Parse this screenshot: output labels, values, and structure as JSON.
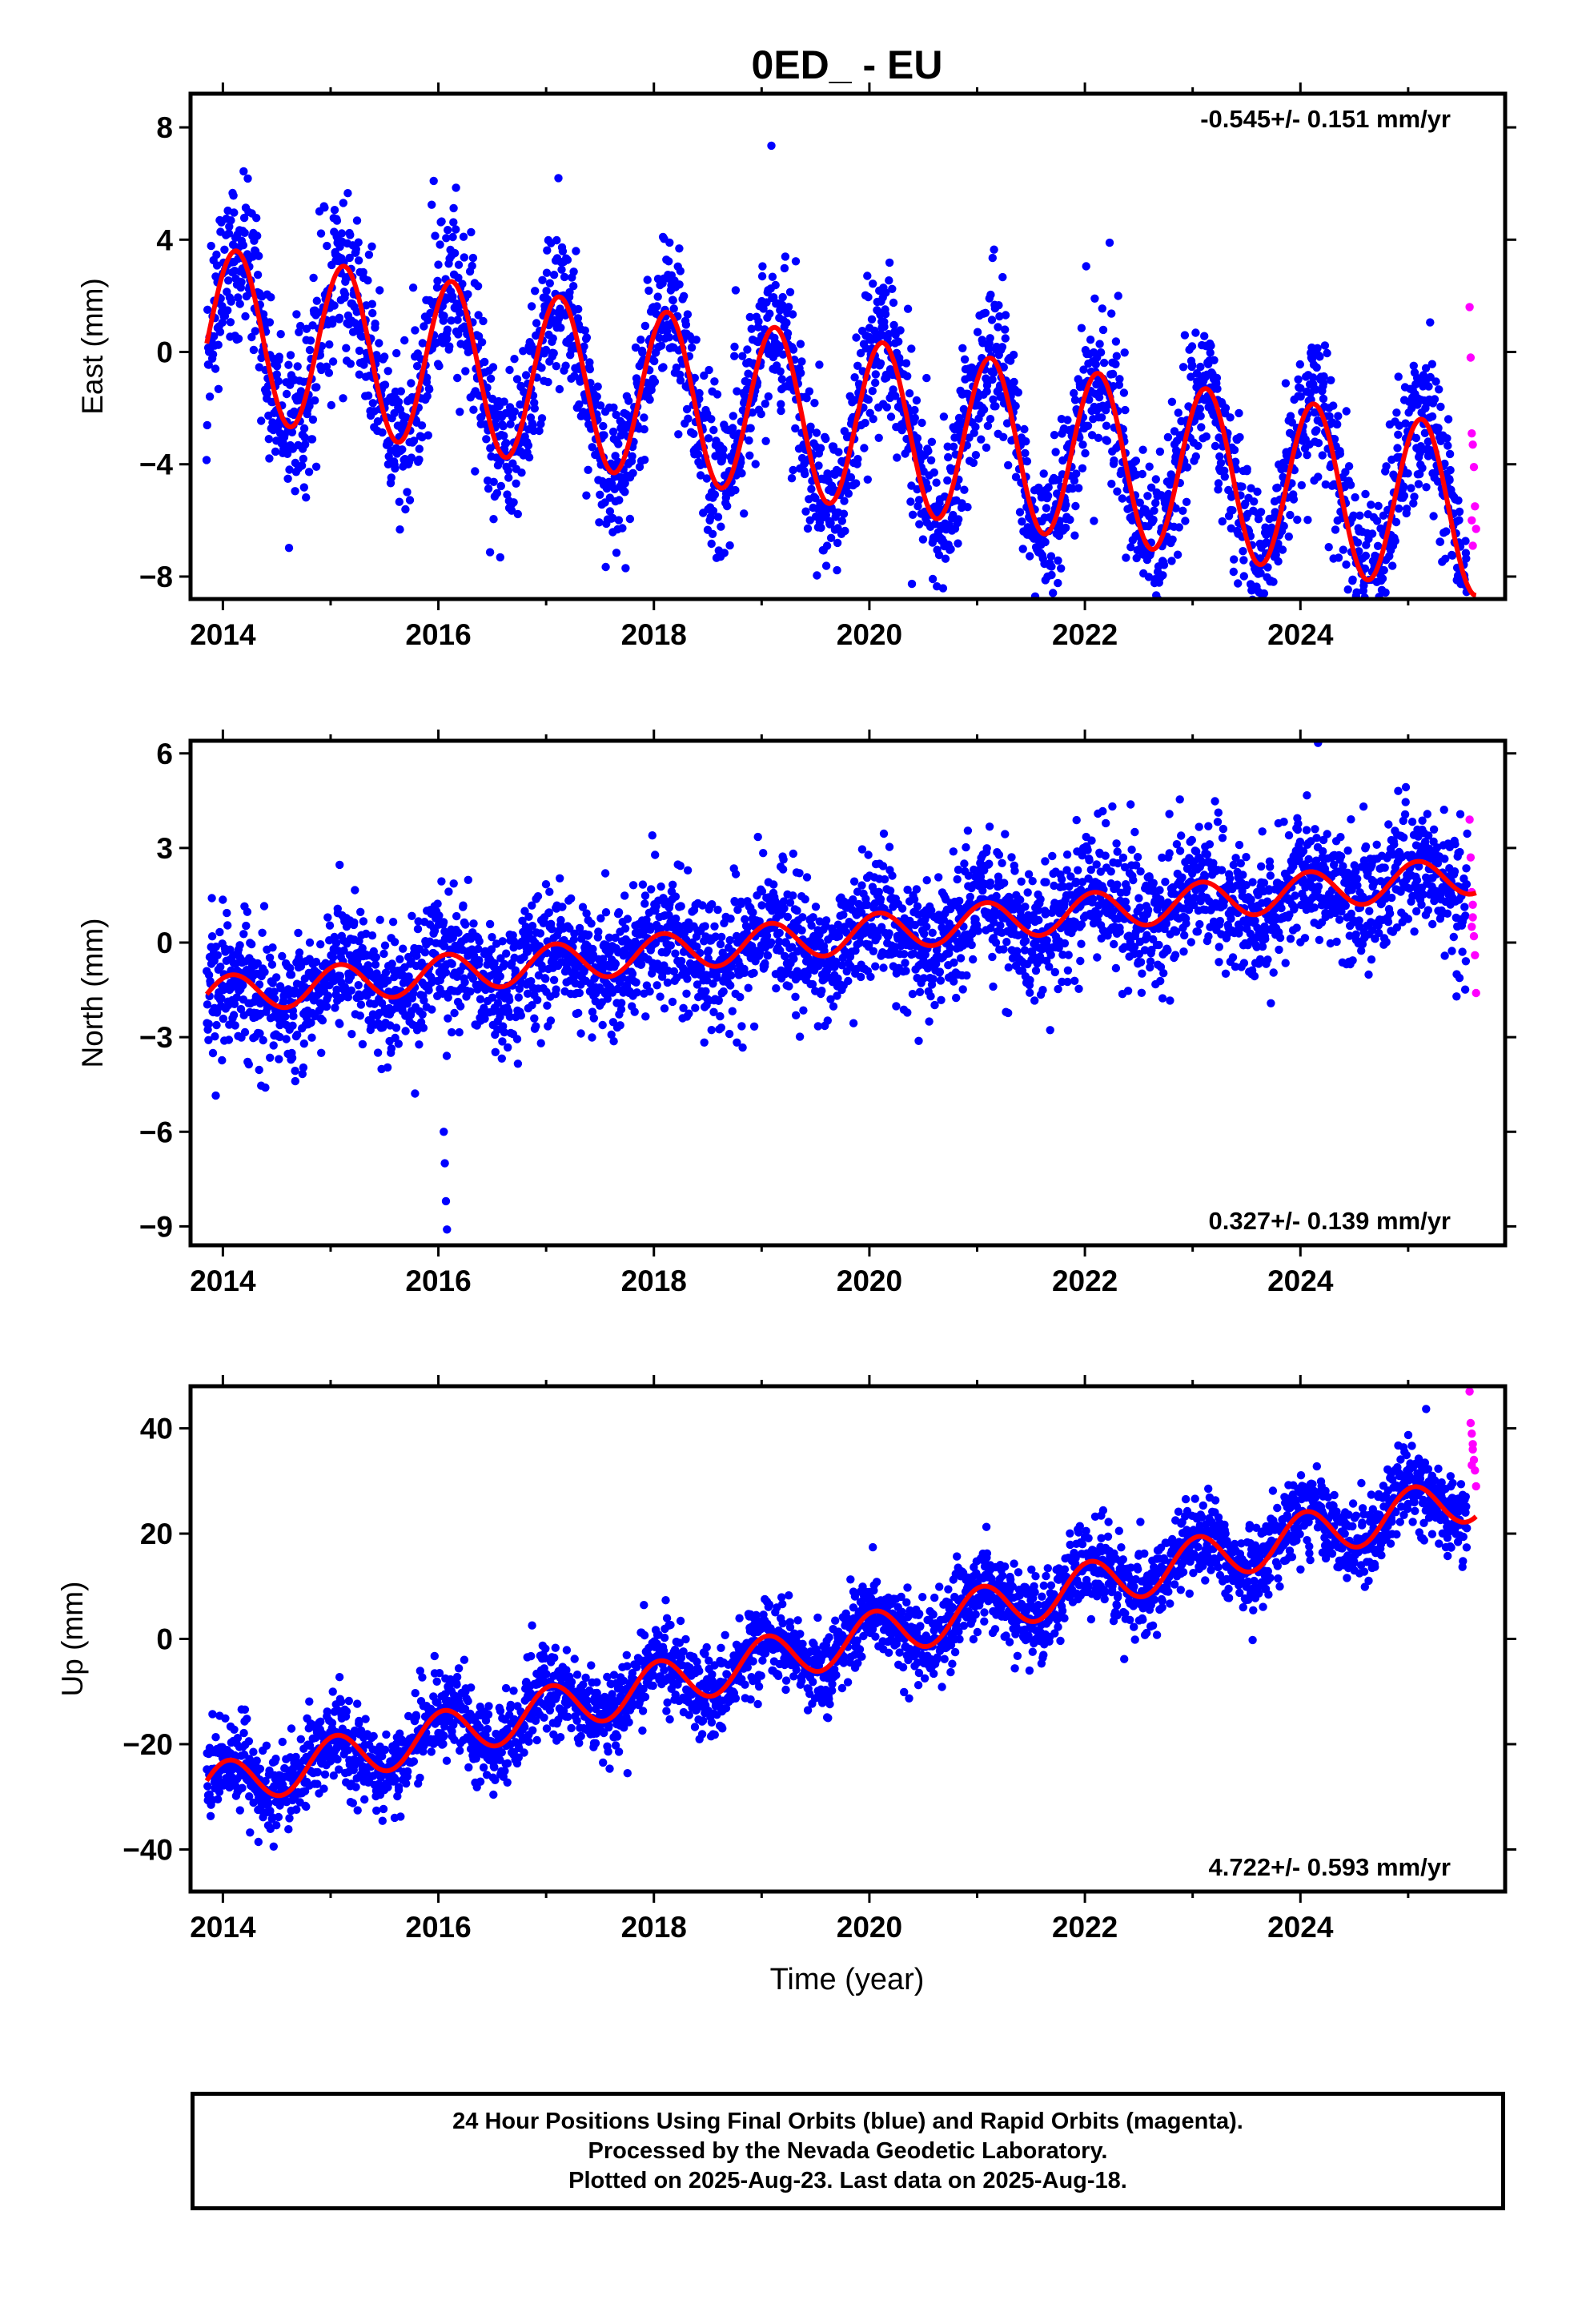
{
  "title": "0ED_ - EU",
  "xlabel": "Time (year)",
  "colors": {
    "final": "#0000ff",
    "rapid": "#ff00ff",
    "model": "#ff0000"
  },
  "footer": {
    "line1": "24 Hour Positions Using Final Orbits (blue) and Rapid Orbits (magenta).",
    "line2": "Processed by the Nevada Geodetic Laboratory.",
    "line3": "Plotted on 2025-Aug-23. Last data on 2025-Aug-18."
  },
  "chart_data": [
    {
      "type": "scatter",
      "ylabel": "East (mm)",
      "rate_label": "-0.545+/- 0.151 mm/yr",
      "xlim": [
        2013.7,
        2025.9
      ],
      "ylim": [
        -8.8,
        9.2
      ],
      "xticks": [
        2014,
        2016,
        2018,
        2020,
        2022,
        2024
      ],
      "yticks": [
        -8,
        -4,
        0,
        4,
        8
      ],
      "yticklabels": [
        "−8",
        "−4",
        "0",
        "4",
        "8"
      ],
      "model": {
        "start": 2013.85,
        "end": 2025.63,
        "offset": 0.75,
        "rate": -0.545,
        "amplitude": 3.0,
        "phase": -0.15,
        "start_value": 0.7
      },
      "noise_sd": 1.4,
      "final_end": 2025.55,
      "rapid_x": [
        2025.57,
        2025.58,
        2025.59,
        2025.6,
        2025.61,
        2025.62,
        2025.63,
        2025.6,
        2025.59
      ],
      "rapid_y": [
        1.6,
        -0.2,
        -2.9,
        -3.3,
        -4.1,
        -5.5,
        -6.3,
        -6.9,
        -6.0
      ]
    },
    {
      "type": "scatter",
      "ylabel": "North (mm)",
      "rate_label": "0.327+/- 0.139 mm/yr",
      "xlim": [
        2013.7,
        2025.9
      ],
      "ylim": [
        -9.6,
        6.4
      ],
      "xticks": [
        2014,
        2016,
        2018,
        2020,
        2022,
        2024
      ],
      "yticks": [
        -9,
        -6,
        -3,
        0,
        3,
        6
      ],
      "yticklabels": [
        "−9",
        "−6",
        "−3",
        "0",
        "3",
        "6"
      ],
      "model": {
        "start": 2013.85,
        "end": 2025.63,
        "offset": -1.7,
        "rate": 0.327,
        "amplitude": 0.6,
        "phase": 0.1,
        "start_value": -1.7
      },
      "noise_sd": 1.0,
      "final_end": 2025.55,
      "outliers_x": [
        2016.05,
        2016.06,
        2016.07,
        2016.08
      ],
      "outliers_y": [
        -6.0,
        -7.0,
        -8.2,
        -9.1
      ],
      "rapid_x": [
        2025.57,
        2025.58,
        2025.59,
        2025.6,
        2025.61,
        2025.62,
        2025.63,
        2025.6,
        2025.59
      ],
      "rapid_y": [
        3.9,
        2.7,
        1.6,
        0.8,
        0.2,
        -0.4,
        -1.6,
        1.2,
        0.5
      ]
    },
    {
      "type": "scatter",
      "ylabel": "Up (mm)",
      "rate_label": "4.722+/- 0.593 mm/yr",
      "xlim": [
        2013.7,
        2025.9
      ],
      "ylim": [
        -48,
        48
      ],
      "xticks": [
        2014,
        2016,
        2018,
        2020,
        2022,
        2024
      ],
      "yticks": [
        -40,
        -20,
        0,
        20,
        40
      ],
      "yticklabels": [
        "−40",
        "−20",
        "0",
        "20",
        "40"
      ],
      "model": {
        "start": 2013.85,
        "end": 2025.63,
        "offset": -28.5,
        "rate": 4.722,
        "amplitude": 4.5,
        "phase": 0.35,
        "start_value": -30
      },
      "noise_sd": 4.0,
      "final_end": 2025.55,
      "rapid_x": [
        2025.57,
        2025.58,
        2025.59,
        2025.6,
        2025.61,
        2025.62,
        2025.63,
        2025.6,
        2025.59
      ],
      "rapid_y": [
        47,
        41,
        39,
        37,
        34,
        32,
        29,
        36,
        33
      ]
    }
  ]
}
